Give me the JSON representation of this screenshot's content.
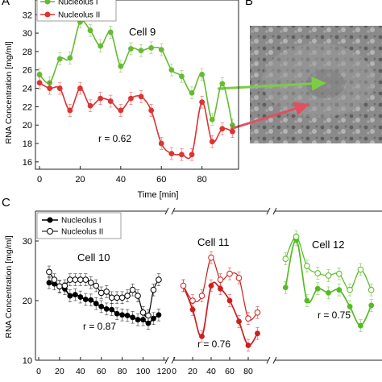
{
  "panel_labels": {
    "top_left": "A",
    "top_right": "B",
    "bottom": "C"
  },
  "arrow_colors": {
    "nucleolus_1": "#7ccc45",
    "nucleolus_2": "#e05060"
  },
  "micrograph": {
    "kind": "phase-contrast cell micrograph"
  },
  "chart_data": [
    {
      "type": "line",
      "title": "Cell 9",
      "xlabel": "Time [min]",
      "ylabel": "RNA Concentration [mg/ml]",
      "xlim": [
        -2,
        98
      ],
      "ylim": [
        15.2,
        33.6
      ],
      "xticks": [
        0,
        20,
        40,
        60,
        80
      ],
      "yticks": [
        16,
        18,
        20,
        22,
        24,
        26,
        28,
        30,
        32
      ],
      "annotation": "r = 0.62",
      "legend_position": "top-left",
      "series": [
        {
          "name": "Nucleolus I",
          "color": "#66bb33",
          "marker": "filled",
          "x": [
            0,
            5,
            10,
            15,
            20,
            25,
            30,
            35,
            40,
            45,
            50,
            55,
            60,
            65,
            70,
            75,
            80,
            85,
            90,
            95
          ],
          "y": [
            25.5,
            24.6,
            27.2,
            27.3,
            31.2,
            30.3,
            28.6,
            30.1,
            26.4,
            28.3,
            28.1,
            28.4,
            28.2,
            26.0,
            25.3,
            23.5,
            25.5,
            20.6,
            24.5,
            20.0
          ]
        },
        {
          "name": "Nucleolus II",
          "color": "#dd3333",
          "marker": "filled",
          "x": [
            0,
            5,
            10,
            15,
            20,
            25,
            30,
            35,
            40,
            45,
            50,
            55,
            60,
            65,
            70,
            75,
            80,
            85,
            90,
            95
          ],
          "y": [
            24.6,
            24.0,
            24.0,
            21.6,
            24.0,
            22.1,
            22.9,
            22.6,
            21.6,
            22.9,
            23.1,
            21.6,
            18.0,
            16.9,
            16.8,
            16.8,
            22.5,
            18.2,
            19.6,
            19.3
          ]
        }
      ]
    },
    {
      "type": "line",
      "title": "Cell 10",
      "xlabel": "",
      "ylabel": "RNA Concentration [mg/ml]",
      "xlim": [
        0,
        122
      ],
      "ylim": [
        10,
        35
      ],
      "xticks": [
        0,
        20,
        40,
        60,
        80,
        100,
        120
      ],
      "yticks": [
        10,
        20,
        30
      ],
      "annotation": "r = 0.87",
      "legend_position": "top-left",
      "series": [
        {
          "name": "Nucleolus I",
          "color": "#000000",
          "marker": "filled",
          "x": [
            10,
            15,
            20,
            25,
            30,
            35,
            40,
            45,
            50,
            55,
            60,
            65,
            70,
            75,
            80,
            85,
            90,
            95,
            100,
            105,
            110,
            115
          ],
          "y": [
            23.0,
            22.8,
            22.3,
            22.0,
            20.8,
            21.0,
            20.6,
            20.2,
            20.1,
            19.5,
            19.0,
            18.6,
            18.5,
            17.8,
            17.6,
            17.5,
            17.2,
            16.8,
            16.8,
            16.2,
            17.0,
            17.6
          ]
        },
        {
          "name": "Nucleolus II",
          "color": "#000000",
          "marker": "open",
          "x": [
            10,
            15,
            20,
            25,
            30,
            35,
            40,
            45,
            50,
            55,
            60,
            65,
            70,
            75,
            80,
            85,
            90,
            95,
            100,
            105,
            110,
            115
          ],
          "y": [
            24.8,
            23.5,
            22.4,
            22.5,
            23.5,
            23.5,
            23.5,
            23.5,
            23.0,
            22.5,
            21.3,
            21.5,
            20.5,
            20.5,
            20.5,
            20.8,
            21.8,
            20.8,
            18.0,
            17.5,
            21.8,
            23.5
          ]
        }
      ]
    },
    {
      "type": "line",
      "title": "Cell 11",
      "xlim": [
        0,
        100
      ],
      "ylim": [
        10,
        35
      ],
      "xticks": [
        0,
        20,
        40,
        60,
        80
      ],
      "annotation": "r = 0.76",
      "series": [
        {
          "name": "Nucleolus I",
          "color": "#cc1f1f",
          "marker": "filled",
          "x": [
            10,
            20,
            30,
            40,
            50,
            60,
            70,
            80,
            90
          ],
          "y": [
            22.5,
            18.5,
            14.0,
            22.5,
            22.0,
            20.0,
            16.5,
            12.5,
            14.5
          ]
        },
        {
          "name": "Nucleolus II",
          "color": "#cc1f1f",
          "marker": "open",
          "x": [
            10,
            20,
            30,
            40,
            50,
            60,
            70,
            80,
            90
          ],
          "y": [
            22.5,
            20.0,
            20.8,
            27.2,
            23.5,
            24.5,
            23.8,
            17.0,
            18.0
          ]
        }
      ]
    },
    {
      "type": "line",
      "title": "Cell 12",
      "xlim": [
        0,
        100
      ],
      "ylim": [
        10,
        35
      ],
      "annotation": "r = 0.75",
      "series": [
        {
          "name": "Nucleolus I",
          "color": "#55bb22",
          "marker": "filled",
          "x": [
            10,
            20,
            30,
            40,
            50,
            60,
            70,
            80,
            90
          ],
          "y": [
            22.2,
            30.2,
            20.0,
            22.0,
            21.3,
            21.8,
            19.0,
            15.8,
            19.2
          ]
        },
        {
          "name": "Nucleolus II",
          "color": "#55bb22",
          "marker": "open",
          "x": [
            10,
            20,
            30,
            40,
            50,
            60,
            70,
            80,
            90
          ],
          "y": [
            27.0,
            30.7,
            25.8,
            24.6,
            24.2,
            24.5,
            21.8,
            25.2,
            21.8
          ]
        }
      ]
    }
  ]
}
